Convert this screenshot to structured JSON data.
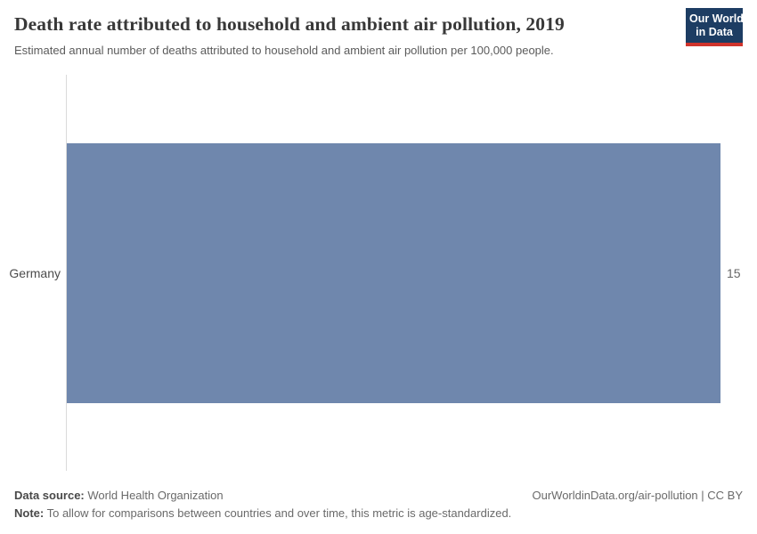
{
  "header": {
    "title": "Death rate attributed to household and ambient air pollution, 2019",
    "subtitle": "Estimated annual number of deaths attributed to household and ambient air pollution per 100,000 people."
  },
  "logo": {
    "line1": "Our World",
    "line2": "in Data",
    "bg_color": "#1d3d63",
    "accent_color": "#d0342c"
  },
  "chart_data": {
    "type": "bar",
    "orientation": "horizontal",
    "categories": [
      "Germany"
    ],
    "values": [
      15
    ],
    "value_labels": [
      "15"
    ],
    "title": "Death rate attributed to household and ambient air pollution, 2019",
    "xlabel": "",
    "ylabel": "",
    "xlim": [
      0,
      15
    ],
    "grid": false,
    "legend": false,
    "bar_color": "#6f87ad",
    "axis_color": "#dadada"
  },
  "footer": {
    "source_label": "Data source:",
    "source_value": " World Health Organization",
    "note_label": "Note:",
    "note_value": " To allow for comparisons between countries and over time, this metric is age-standardized.",
    "link": "OurWorldinData.org/air-pollution | CC BY"
  }
}
